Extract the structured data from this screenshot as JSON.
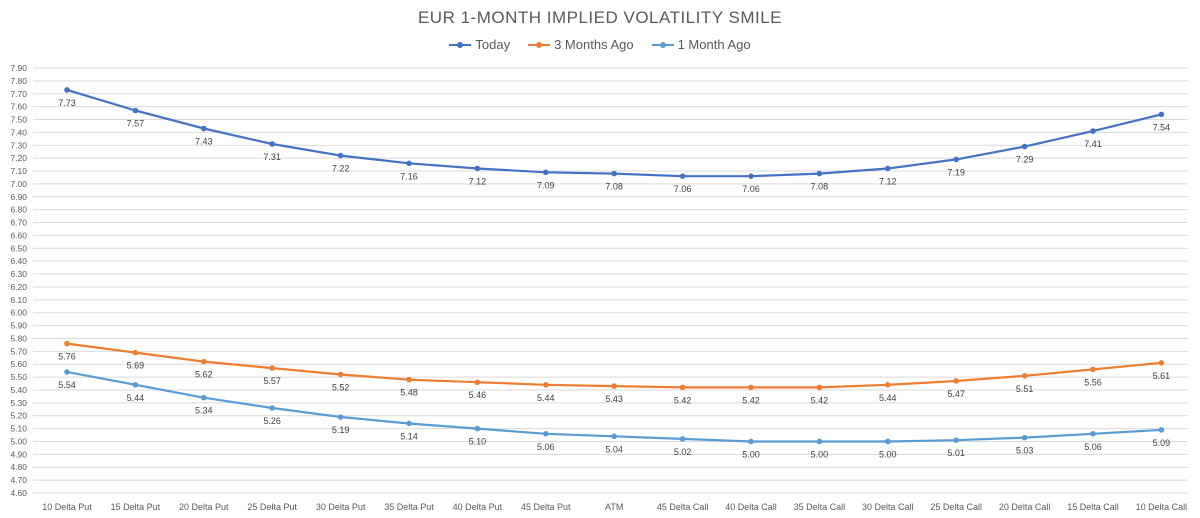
{
  "chart_data": {
    "type": "line",
    "title": "EUR 1-MONTH IMPLIED VOLATILITY SMILE",
    "xlabel": "",
    "ylabel": "",
    "ylim": [
      4.6,
      7.9
    ],
    "ytick_step": 0.1,
    "grid": true,
    "legend_position": "top",
    "categories": [
      "10 Delta Put",
      "15 Delta Put",
      "20 Delta Put",
      "25 Delta Put",
      "30 Delta Put",
      "35 Delta Put",
      "40 Delta Put",
      "45 Delta Put",
      "ATM",
      "45 Delta Call",
      "40 Delta Call",
      "35 Delta Call",
      "30 Delta Call",
      "25 Delta Call",
      "20 Delta Call",
      "15 Delta Call",
      "10 Delta Call"
    ],
    "series": [
      {
        "name": "Today",
        "color": "#4472C4",
        "values": [
          7.73,
          7.57,
          7.43,
          7.31,
          7.22,
          7.16,
          7.12,
          7.09,
          7.08,
          7.06,
          7.06,
          7.08,
          7.12,
          7.19,
          7.29,
          7.41,
          7.54
        ]
      },
      {
        "name": "3 Months Ago",
        "color": "#ED7D31",
        "values": [
          5.76,
          5.69,
          5.62,
          5.57,
          5.52,
          5.48,
          5.46,
          5.44,
          5.43,
          5.42,
          5.42,
          5.42,
          5.44,
          5.47,
          5.51,
          5.56,
          5.61
        ]
      },
      {
        "name": "1 Month Ago",
        "color": "#5B9BD5",
        "values": [
          5.54,
          5.44,
          5.34,
          5.26,
          5.19,
          5.14,
          5.1,
          5.06,
          5.04,
          5.02,
          5.0,
          5.0,
          5.0,
          5.01,
          5.03,
          5.06,
          5.09
        ]
      }
    ]
  }
}
